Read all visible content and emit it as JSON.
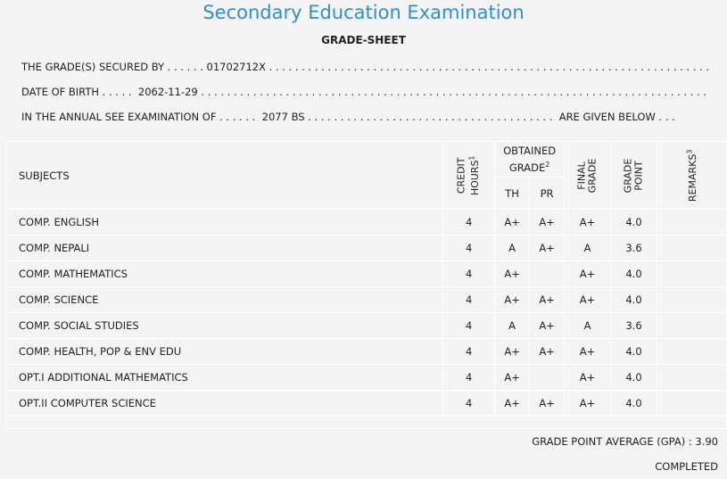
{
  "header": {
    "title": "Secondary Education Examination",
    "subtitle": "GRADE-SHEET"
  },
  "info": {
    "secured_label": "THE GRADE(S) SECURED BY",
    "symbol_no": "01702712X",
    "dob_label": "DATE OF BIRTH",
    "dob": "2062-11-29",
    "exam_label": "IN THE ANNUAL SEE EXAMINATION OF",
    "exam_year": "2077 BS",
    "given_below": "ARE GIVEN BELOW"
  },
  "columns": {
    "subjects": "SUBJECTS",
    "credit_hours_1": "CREDIT",
    "credit_hours_2": "HOURS",
    "credit_sup": "1",
    "obtained_grade_1": "OBTAINED",
    "obtained_grade_2": "GRADE",
    "obtained_sup": "2",
    "th": "TH",
    "pr": "PR",
    "final_grade_1": "FINAL",
    "final_grade_2": "GRADE",
    "grade_point_1": "GRADE",
    "grade_point_2": "POINT",
    "remarks": "REMARKS",
    "remarks_sup": "3"
  },
  "rows": [
    {
      "subject": "COMP. ENGLISH",
      "credit": "4",
      "th": "A+",
      "pr": "A+",
      "final": "A+",
      "gp": "4.0",
      "remarks": ""
    },
    {
      "subject": "COMP. NEPALI",
      "credit": "4",
      "th": "A",
      "pr": "A+",
      "final": "A",
      "gp": "3.6",
      "remarks": ""
    },
    {
      "subject": "COMP. MATHEMATICS",
      "credit": "4",
      "th": "A+",
      "pr": "",
      "final": "A+",
      "gp": "4.0",
      "remarks": ""
    },
    {
      "subject": "COMP. SCIENCE",
      "credit": "4",
      "th": "A+",
      "pr": "A+",
      "final": "A+",
      "gp": "4.0",
      "remarks": ""
    },
    {
      "subject": "COMP. SOCIAL STUDIES",
      "credit": "4",
      "th": "A",
      "pr": "A+",
      "final": "A",
      "gp": "3.6",
      "remarks": ""
    },
    {
      "subject": "COMP. HEALTH, POP & ENV EDU",
      "credit": "4",
      "th": "A+",
      "pr": "A+",
      "final": "A+",
      "gp": "4.0",
      "remarks": ""
    },
    {
      "subject": "OPT.I ADDITIONAL MATHEMATICS",
      "credit": "4",
      "th": "A+",
      "pr": "",
      "final": "A+",
      "gp": "4.0",
      "remarks": ""
    },
    {
      "subject": "OPT.II COMPUTER SCIENCE",
      "credit": "4",
      "th": "A+",
      "pr": "A+",
      "final": "A+",
      "gp": "4.0",
      "remarks": ""
    }
  ],
  "footer": {
    "gpa_label": "GRADE POINT AVERAGE (GPA) :",
    "gpa_value": "3.90",
    "status": "COMPLETED"
  },
  "colors": {
    "title": "#2f8fce",
    "background": "#f4f4f4"
  }
}
